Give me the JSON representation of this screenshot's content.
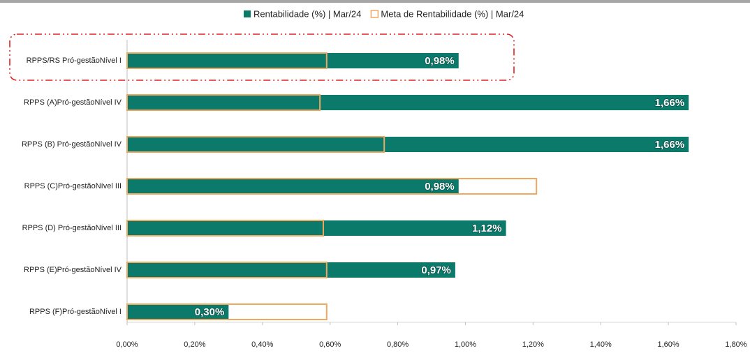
{
  "chart_data": {
    "type": "bar",
    "orientation": "horizontal",
    "legend": "top",
    "categories": [
      "RPPS/RS Pró-gestãoNível I",
      "RPPS (A)Pró-gestãoNível IV",
      "RPPS (B) Pró-gestãoNível IV",
      "RPPS (C)Pró-gestãoNível III",
      "RPPS (D) Pró-gestãoNível III",
      "RPPS (E)Pró-gestãoNível IV",
      "RPPS (F)Pró-gestãoNível I"
    ],
    "series": [
      {
        "name": "Rentabilidade (%) | Mar/24",
        "color": "#0b7a6b",
        "values": [
          0.98,
          1.66,
          1.66,
          0.98,
          1.12,
          0.97,
          0.3
        ],
        "value_labels": [
          "0,98%",
          "1,66%",
          "1,66%",
          "0,98%",
          "1,12%",
          "0,97%",
          "0,30%"
        ]
      },
      {
        "name": "Meta de Rentabilidade (%) | Mar/24",
        "color": "#f0a860",
        "values": [
          0.59,
          0.57,
          0.76,
          1.21,
          0.58,
          0.59,
          0.59
        ]
      }
    ],
    "xlim": [
      0,
      1.8
    ],
    "xticks": [
      {
        "value": 0,
        "label": "0,00%"
      },
      {
        "value": 0.2,
        "label": "0,20%"
      },
      {
        "value": 0.4,
        "label": "0,40%"
      },
      {
        "value": 0.6,
        "label": "0,60%"
      },
      {
        "value": 0.8,
        "label": "0,80%"
      },
      {
        "value": 1.0,
        "label": "1,00%"
      },
      {
        "value": 1.2,
        "label": "1,20%"
      },
      {
        "value": 1.4,
        "label": "1,40%"
      },
      {
        "value": 1.6,
        "label": "1,60%"
      },
      {
        "value": 1.8,
        "label": "1,80%"
      }
    ]
  }
}
